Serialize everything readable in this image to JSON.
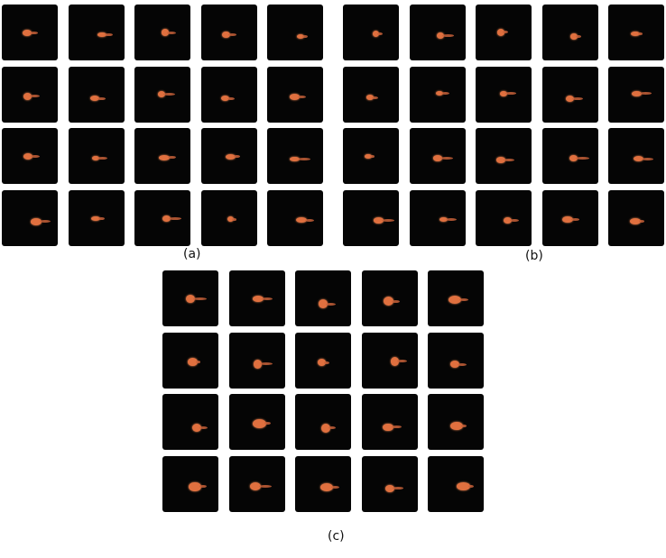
{
  "colors": {
    "background": "#050505",
    "blob": "#e0703f",
    "page": "#ffffff"
  },
  "panels": [
    {
      "id": "a",
      "label": "(a)",
      "rows": 4,
      "cols": 5
    },
    {
      "id": "b",
      "label": "(b)",
      "rows": 4,
      "cols": 5
    },
    {
      "id": "c",
      "label": "(c)",
      "rows": 4,
      "cols": 5
    }
  ]
}
